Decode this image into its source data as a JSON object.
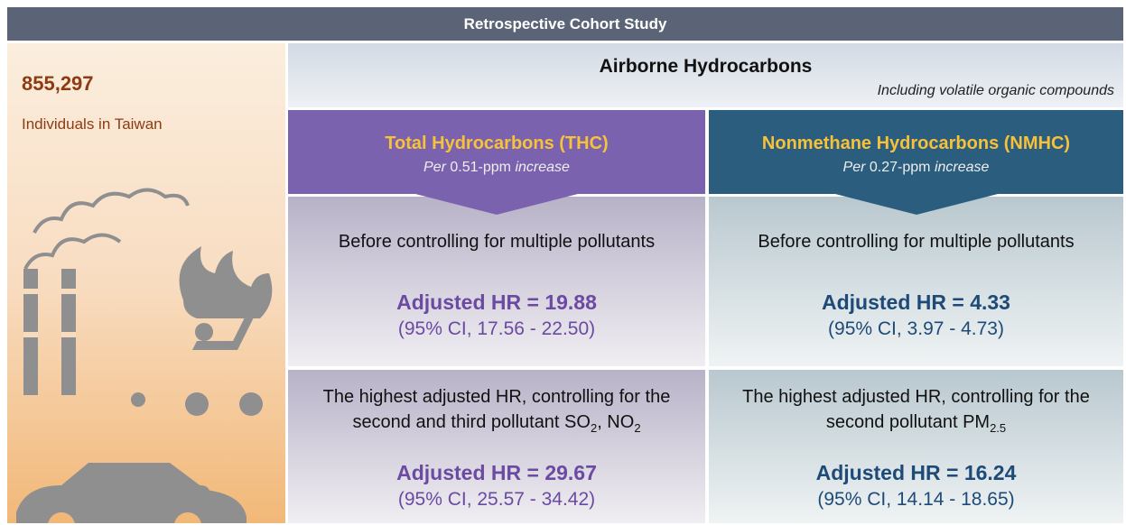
{
  "header": {
    "title": "Retrospective Cohort Study"
  },
  "population": {
    "count": "855,297",
    "label": "Individuals in Taiwan"
  },
  "exposure": {
    "title": "Airborne Hydrocarbons",
    "subtitle": "Including volatile organic compounds"
  },
  "columns": [
    {
      "title": "Total Hydrocarbons (THC)",
      "unit": {
        "pre": "Per",
        "value": "0.51-ppm",
        "post": "increase"
      },
      "before": {
        "caption": "Before controlling for multiple pollutants",
        "hr": "Adjusted HR = 19.88",
        "ci": "(95% CI, 17.56 - 22.50)"
      },
      "adjusted": {
        "caption": [
          "The highest adjusted HR, controlling for the second and third pollutant SO",
          "2",
          ", NO",
          "2"
        ],
        "hr": "Adjusted HR = 29.67",
        "ci": "(95% CI, 25.57 - 34.42)"
      }
    },
    {
      "title": "Nonmethane Hydrocarbons (NMHC)",
      "unit": {
        "pre": "Per",
        "value": "0.27-ppm",
        "post": "increase"
      },
      "before": {
        "caption": "Before controlling for multiple pollutants",
        "hr": "Adjusted HR = 4.33",
        "ci": "(95% CI, 3.97 - 4.73)"
      },
      "adjusted": {
        "caption": [
          "The highest adjusted HR, controlling for the second pollutant PM",
          "2.5"
        ],
        "hr": "Adjusted HR = 16.24",
        "ci": "(95% CI, 14.14 - 18.65)"
      }
    }
  ]
}
